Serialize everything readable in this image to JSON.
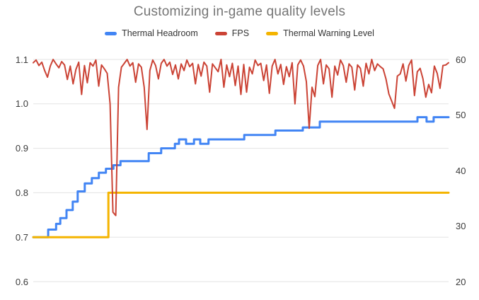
{
  "colors": {
    "background": "#ffffff",
    "title_text": "#757575",
    "legend_text": "#333333",
    "tick_text": "#3b3b3b",
    "gridline": "#e3e3e3",
    "thermal_headroom": "#4285f4",
    "fps": "#cb4335",
    "thermal_warning": "#f4b400"
  },
  "chart_data": {
    "type": "line",
    "title": "Customizing in-game quality levels",
    "xlabel": "",
    "x_tick_labels_visible": false,
    "grid": "horizontal-only",
    "legend_position": "top",
    "left_axis": {
      "min": 0.6,
      "max": 1.1,
      "ticks": [
        {
          "label": "1.1",
          "value": 1.1
        },
        {
          "label": "1.0",
          "value": 1.0
        },
        {
          "label": "0.9",
          "value": 0.9
        },
        {
          "label": "0.8",
          "value": 0.8
        },
        {
          "label": "0.7",
          "value": 0.7
        },
        {
          "label": "0.6",
          "value": 0.6
        }
      ]
    },
    "right_axis": {
      "min": 20,
      "max": 60,
      "ticks": [
        {
          "label": "60",
          "value": 60
        },
        {
          "label": "50",
          "value": 50
        },
        {
          "label": "40",
          "value": 40
        },
        {
          "label": "30",
          "value": 30
        },
        {
          "label": "20",
          "value": 20
        }
      ]
    },
    "series": [
      {
        "name": "Thermal Headroom",
        "id": "thermal-headroom",
        "axis": "left",
        "color": "#4285f4",
        "width": 3,
        "z": 0,
        "points": [
          [
            0,
            0.7
          ],
          [
            3.6,
            0.7
          ],
          [
            3.6,
            0.717
          ],
          [
            5.5,
            0.717
          ],
          [
            5.5,
            0.73
          ],
          [
            6.5,
            0.73
          ],
          [
            6.5,
            0.743
          ],
          [
            8.0,
            0.743
          ],
          [
            8.0,
            0.761
          ],
          [
            9.5,
            0.761
          ],
          [
            9.5,
            0.78
          ],
          [
            10.7,
            0.78
          ],
          [
            10.7,
            0.803
          ],
          [
            12.4,
            0.803
          ],
          [
            12.4,
            0.821
          ],
          [
            14.1,
            0.821
          ],
          [
            14.1,
            0.833
          ],
          [
            15.8,
            0.833
          ],
          [
            15.8,
            0.845
          ],
          [
            17.5,
            0.845
          ],
          [
            17.5,
            0.854
          ],
          [
            19.3,
            0.854
          ],
          [
            19.3,
            0.862
          ],
          [
            21.0,
            0.862
          ],
          [
            21.0,
            0.871
          ],
          [
            27.8,
            0.871
          ],
          [
            27.8,
            0.889
          ],
          [
            30.8,
            0.889
          ],
          [
            30.8,
            0.9
          ],
          [
            34.1,
            0.9
          ],
          [
            34.1,
            0.91
          ],
          [
            35.1,
            0.91
          ],
          [
            35.1,
            0.92
          ],
          [
            36.8,
            0.92
          ],
          [
            36.8,
            0.91
          ],
          [
            38.7,
            0.91
          ],
          [
            38.7,
            0.92
          ],
          [
            40.2,
            0.92
          ],
          [
            40.2,
            0.91
          ],
          [
            42.2,
            0.91
          ],
          [
            42.2,
            0.92
          ],
          [
            50.8,
            0.92
          ],
          [
            50.8,
            0.93
          ],
          [
            58.3,
            0.93
          ],
          [
            58.3,
            0.94
          ],
          [
            64.9,
            0.94
          ],
          [
            64.9,
            0.947
          ],
          [
            69.0,
            0.947
          ],
          [
            69.0,
            0.96
          ],
          [
            92.5,
            0.96
          ],
          [
            92.5,
            0.97
          ],
          [
            94.7,
            0.97
          ],
          [
            94.7,
            0.96
          ],
          [
            96.4,
            0.96
          ],
          [
            96.4,
            0.97
          ],
          [
            100,
            0.97
          ]
        ]
      },
      {
        "name": "FPS",
        "id": "fps",
        "axis": "right",
        "color": "#cb4335",
        "width": 2,
        "z": 2,
        "values": [
          59.4,
          59.9,
          58.9,
          59.5,
          58.0,
          56.8,
          58.8,
          60.0,
          59.2,
          58.5,
          59.6,
          59.0,
          56.4,
          58.8,
          55.6,
          58.2,
          59.5,
          53.7,
          58.9,
          55.8,
          59.4,
          58.8,
          59.9,
          55.2,
          59.0,
          58.3,
          57.5,
          52.0,
          32.5,
          31.9,
          55.0,
          58.6,
          59.3,
          60.0,
          58.8,
          59.4,
          55.9,
          59.2,
          58.6,
          55.0,
          47.4,
          58.0,
          59.9,
          58.9,
          56.5,
          59.3,
          60.0,
          58.8,
          59.5,
          57.3,
          59.0,
          56.5,
          59.2,
          58.0,
          59.9,
          58.7,
          59.3,
          55.6,
          59.1,
          57.0,
          59.5,
          58.8,
          54.1,
          59.2,
          58.5,
          57.8,
          60.0,
          55.0,
          59.0,
          56.9,
          59.3,
          55.3,
          58.8,
          53.7,
          59.1,
          54.1,
          58.6,
          57.4,
          59.9,
          58.9,
          59.3,
          56.2,
          59.0,
          53.9,
          58.8,
          60.0,
          57.4,
          59.1,
          55.5,
          58.7,
          56.9,
          59.4,
          52.0,
          59.0,
          59.9,
          58.8,
          56.0,
          47.6,
          55.0,
          53.3,
          58.9,
          60.0,
          55.6,
          59.0,
          58.3,
          53.2,
          58.8,
          57.2,
          59.9,
          58.9,
          55.9,
          59.2,
          58.6,
          54.5,
          59.0,
          58.4,
          55.2,
          59.3,
          57.4,
          60.0,
          58.0,
          59.2,
          58.7,
          58.3,
          56.5,
          53.8,
          52.5,
          51.2,
          57.0,
          57.4,
          59.2,
          56.1,
          58.9,
          59.9,
          53.5,
          57.8,
          58.4,
          56.5,
          53.2,
          55.5,
          54.0,
          58.8,
          57.5,
          54.8,
          58.9,
          59.0,
          59.4
        ]
      },
      {
        "name": "Thermal Warning Level",
        "id": "thermal-warning-level",
        "axis": "left",
        "color": "#f4b400",
        "width": 3,
        "z": 1,
        "points": [
          [
            0,
            0.7
          ],
          [
            18.1,
            0.7
          ],
          [
            18.1,
            0.8
          ],
          [
            100,
            0.8
          ]
        ]
      }
    ]
  }
}
